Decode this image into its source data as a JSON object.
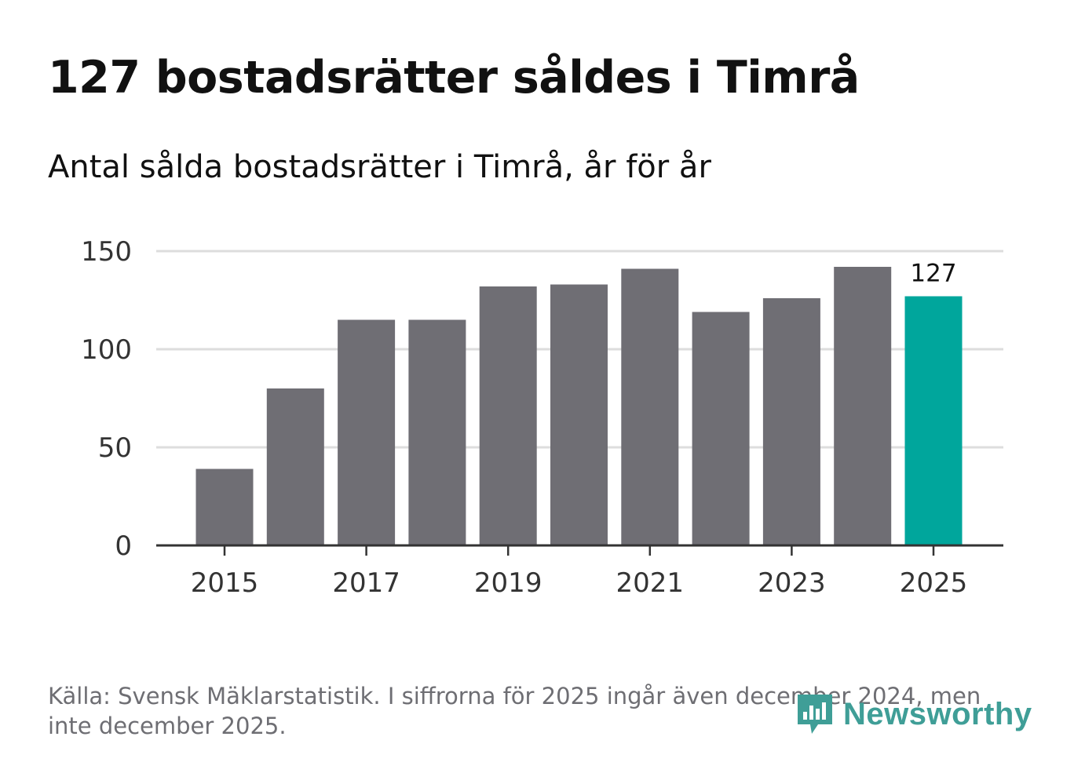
{
  "chart_data": {
    "type": "bar",
    "title": "127 bostadsrätter såldes i Timrå",
    "subtitle": "Antal sålda bostadsrätter i Timrå, år för år",
    "categories": [
      "2015",
      "2016",
      "2017",
      "2018",
      "2019",
      "2020",
      "2021",
      "2022",
      "2023",
      "2024",
      "2025"
    ],
    "values": [
      39,
      80,
      115,
      115,
      132,
      133,
      141,
      119,
      126,
      142,
      127
    ],
    "x_tick_labels": [
      "2015",
      "2017",
      "2019",
      "2021",
      "2023",
      "2025"
    ],
    "y_ticks": [
      0,
      50,
      100,
      150
    ],
    "ylim": [
      0,
      150
    ],
    "highlight_index": 10,
    "highlight_label": "127",
    "xlabel": "",
    "ylabel": "",
    "grid": true,
    "colors": {
      "bar": "#6f6e74",
      "highlight": "#00a69c",
      "grid": "#dddddd",
      "axis": "#333333"
    }
  },
  "footer": {
    "source": "Källa: Svensk Mäklarstatistik. I siffrorna för 2025 ingår även december 2024, men inte december 2025.",
    "logo_text": "Newsworthy"
  }
}
